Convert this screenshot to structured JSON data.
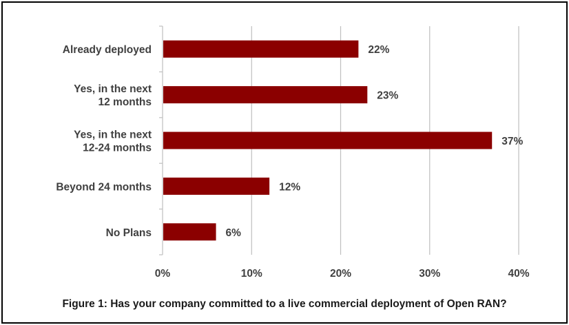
{
  "figure_caption": "Figure 1: Has your company committed to a live commercial deployment of Open RAN?",
  "colors": {
    "bar": "#8b0000",
    "grid": "#bfbfbf",
    "axis": "#bfbfbf",
    "text": "#3f3f3f"
  },
  "chart_data": {
    "type": "bar",
    "orientation": "horizontal",
    "title": "",
    "xlabel": "",
    "ylabel": "",
    "categories": [
      [
        "Already deployed"
      ],
      [
        "Yes, in the next",
        "12 months"
      ],
      [
        "Yes, in the next",
        "12-24 months"
      ],
      [
        "Beyond 24 months"
      ],
      [
        "No Plans"
      ]
    ],
    "values": [
      22,
      23,
      37,
      12,
      6
    ],
    "data_labels": [
      "22%",
      "23%",
      "37%",
      "12%",
      "6%"
    ],
    "xlim": [
      0,
      40
    ],
    "ticks": [
      0,
      10,
      20,
      30,
      40
    ],
    "tick_labels": [
      "0%",
      "10%",
      "20%",
      "30%",
      "40%"
    ],
    "grid": "vertical",
    "legend": "none"
  }
}
